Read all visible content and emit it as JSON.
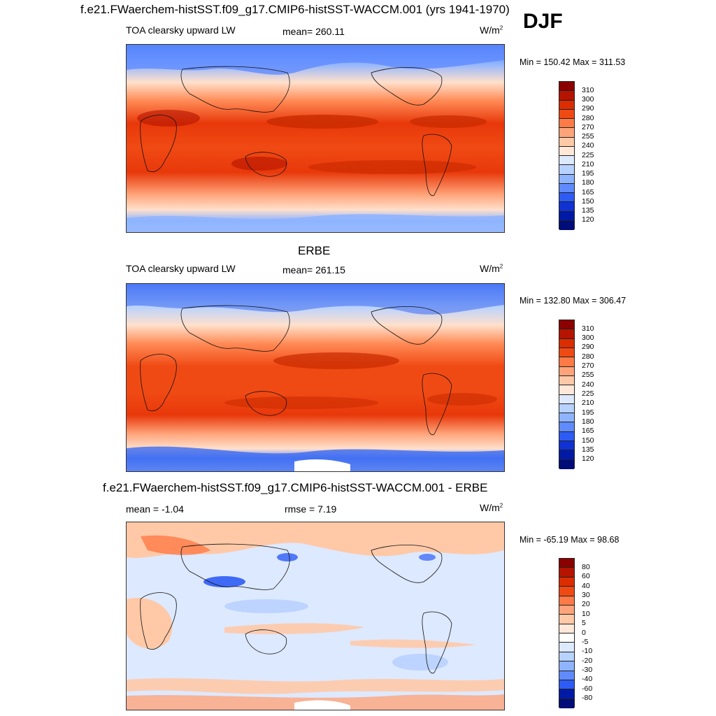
{
  "figure": {
    "case_title": "f.e21.FWaerchem-histSST.f09_g17.CMIP6-histSST-WACCM.001 (yrs 1941-1970)",
    "season": "DJF"
  },
  "panels": [
    {
      "id": "model",
      "title": "",
      "variable": "TOA clearsky upward LW",
      "stat": "mean= 260.11",
      "units": "W/m",
      "units_sup": "2",
      "minmax": "Min = 150.42 Max = 311.53",
      "colorbar": {
        "labels": [
          "310",
          "300",
          "290",
          "280",
          "270",
          "255",
          "240",
          "225",
          "210",
          "195",
          "180",
          "165",
          "150",
          "135",
          "120"
        ],
        "colors": [
          "#8b0000",
          "#b41400",
          "#dc2d00",
          "#f04a14",
          "#ff7a46",
          "#ffa47a",
          "#ffc9a8",
          "#ffe8d8",
          "#dde9ff",
          "#b8d2ff",
          "#8fb4ff",
          "#5f8bff",
          "#2d5cf5",
          "#1032d2",
          "#001aa6",
          "#000c78"
        ]
      }
    },
    {
      "id": "obs",
      "title": "ERBE",
      "variable": "TOA clearsky upward LW",
      "stat": "mean= 261.15",
      "units": "W/m",
      "units_sup": "2",
      "minmax": "Min = 132.80 Max = 306.47",
      "colorbar": {
        "labels": [
          "310",
          "300",
          "290",
          "280",
          "270",
          "255",
          "240",
          "225",
          "210",
          "195",
          "180",
          "165",
          "150",
          "135",
          "120"
        ],
        "colors": [
          "#8b0000",
          "#b41400",
          "#dc2d00",
          "#f04a14",
          "#ff7a46",
          "#ffa47a",
          "#ffc9a8",
          "#ffe8d8",
          "#dde9ff",
          "#b8d2ff",
          "#8fb4ff",
          "#5f8bff",
          "#2d5cf5",
          "#1032d2",
          "#001aa6",
          "#000c78"
        ]
      }
    },
    {
      "id": "diff",
      "title": "f.e21.FWaerchem-histSST.f09_g17.CMIP6-histSST-WACCM.001 - ERBE",
      "variable": "mean =  -1.04",
      "stat": "rmse =   7.19",
      "units": "W/m",
      "units_sup": "2",
      "minmax": "Min = -65.19 Max =  98.68",
      "colorbar": {
        "labels": [
          "80",
          "60",
          "40",
          "30",
          "20",
          "10",
          "5",
          "0",
          "-5",
          "-10",
          "-20",
          "-30",
          "-40",
          "-60",
          "-80"
        ],
        "colors": [
          "#8b0000",
          "#b41400",
          "#dc2d00",
          "#f04a14",
          "#ff7a46",
          "#ffa47a",
          "#ffc9a8",
          "#ffe8d8",
          "#ffffff",
          "#dde9ff",
          "#b8d2ff",
          "#8fb4ff",
          "#5f8bff",
          "#2d5cf5",
          "#001aa6",
          "#000c78"
        ]
      }
    }
  ]
}
